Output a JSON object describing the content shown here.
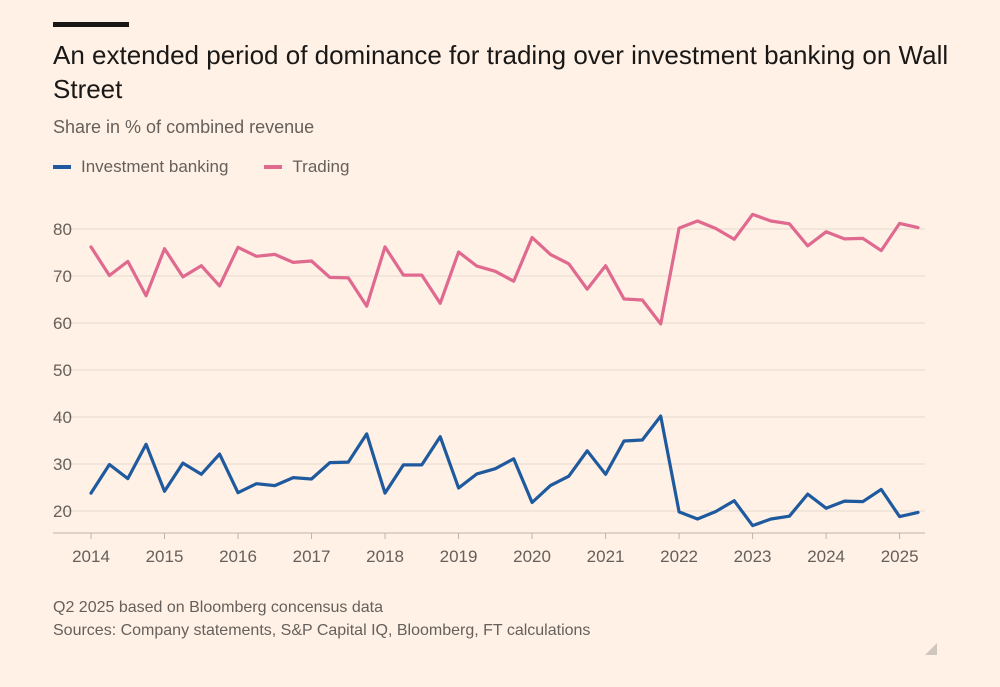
{
  "title": "An extended period of dominance for trading over investment banking on Wall Street",
  "subtitle": "Share in % of combined revenue",
  "legend": {
    "ib_label": "Investment banking",
    "trading_label": "Trading"
  },
  "colors": {
    "ib": "#1f5a9e",
    "trading": "#e0698f",
    "grid": "#e6d9ce",
    "axis_text": "#66605c"
  },
  "notes": {
    "line1": "Q2 2025 based on Bloomberg concensus data",
    "line2": "Sources: Company statements, S&P Capital IQ, Bloomberg, FT calculations"
  },
  "chart_data": {
    "type": "line",
    "title": "An extended period of dominance for trading over investment banking on Wall Street",
    "subtitle": "Share in % of combined revenue",
    "ylabel": "",
    "xlabel": "",
    "ylim": [
      17,
      85
    ],
    "xlim": [
      2014,
      2025.33
    ],
    "yticks": [
      20,
      30,
      40,
      50,
      60,
      70,
      80
    ],
    "xticks": [
      2014,
      2015,
      2016,
      2017,
      2018,
      2019,
      2020,
      2021,
      2022,
      2023,
      2024,
      2025
    ],
    "grid": "horizontal",
    "legend_position": "top-left",
    "x": [
      2014,
      2014.25,
      2014.5,
      2014.75,
      2015,
      2015.25,
      2015.5,
      2015.75,
      2016,
      2016.25,
      2016.5,
      2016.75,
      2017,
      2017.25,
      2017.5,
      2017.75,
      2018,
      2018.25,
      2018.5,
      2018.75,
      2019,
      2019.25,
      2019.5,
      2019.75,
      2020,
      2020.25,
      2020.5,
      2020.75,
      2021,
      2021.25,
      2021.5,
      2021.75,
      2022,
      2022.25,
      2022.5,
      2022.75,
      2023,
      2023.25,
      2023.5,
      2023.75,
      2024,
      2024.25,
      2024.5,
      2024.75,
      2025,
      2025.25
    ],
    "series": [
      {
        "name": "Trading",
        "values": [
          76.2,
          70.1,
          73.1,
          65.8,
          75.8,
          69.8,
          72.2,
          67.9,
          76.1,
          74.2,
          74.6,
          72.9,
          73.2,
          69.7,
          69.6,
          63.6,
          76.2,
          70.2,
          70.2,
          64.2,
          75.1,
          72.1,
          71.0,
          68.9,
          78.2,
          74.6,
          72.6,
          67.2,
          72.2,
          65.1,
          64.9,
          59.8,
          80.2,
          81.7,
          80.1,
          77.8,
          83.1,
          81.7,
          81.1,
          76.4,
          79.4,
          77.9,
          78.0,
          75.4,
          81.2,
          80.3
        ]
      },
      {
        "name": "Investment banking",
        "values": [
          23.8,
          29.9,
          26.9,
          34.2,
          24.2,
          30.2,
          27.8,
          32.1,
          23.9,
          25.8,
          25.4,
          27.1,
          26.8,
          30.3,
          30.4,
          36.4,
          23.8,
          29.8,
          29.8,
          35.8,
          24.9,
          27.9,
          29.0,
          31.1,
          21.8,
          25.4,
          27.4,
          32.8,
          27.8,
          34.9,
          35.1,
          40.2,
          19.8,
          18.3,
          19.9,
          22.2,
          16.9,
          18.3,
          18.9,
          23.6,
          20.6,
          22.1,
          22.0,
          24.6,
          18.8,
          19.7
        ]
      }
    ]
  }
}
